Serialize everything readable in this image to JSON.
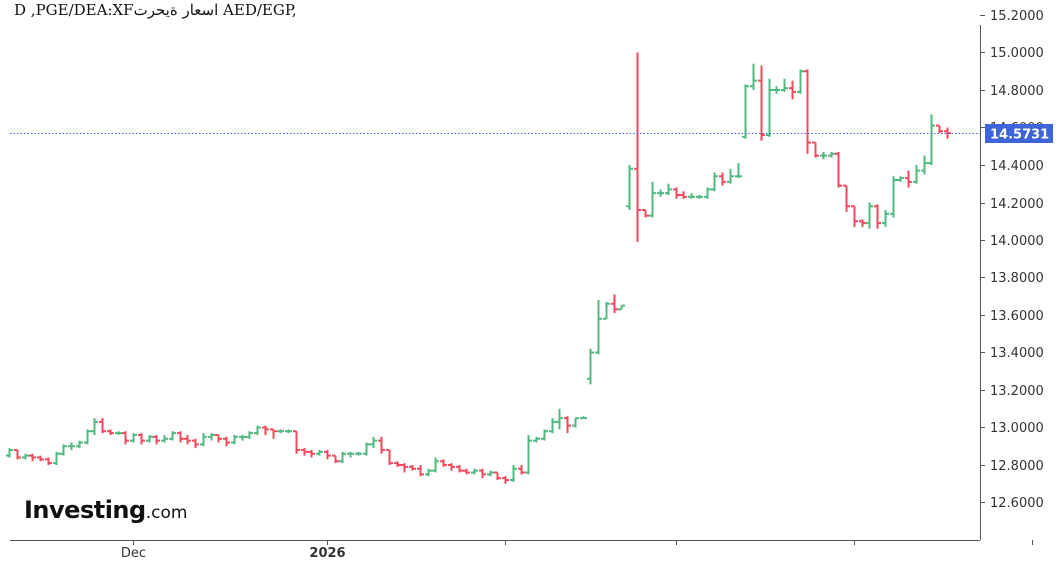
{
  "title": "D ,PGE/DEA:XFاسعار ةيحرت AED/EGP,",
  "logo": {
    "brand": "Investing",
    "suffix": ".com"
  },
  "colors": {
    "up": "#4fb97f",
    "down": "#f2495c",
    "last_price_line": "#3d64d8",
    "last_price_bg": "#3d64d8",
    "axis": "#555555",
    "tick_text": "#333333"
  },
  "chart_data": {
    "type": "ohlc_bar",
    "title": "D ,PGE/DEA:XFاسعار ةيحرت AED/EGP,",
    "xlabel": "",
    "ylabel": "",
    "ylim": [
      12.57,
      15.27
    ],
    "y_ticks": [
      "15.2000",
      "15.0000",
      "14.8000",
      "14.6000",
      "14.4000",
      "14.2000",
      "14.0000",
      "13.8000",
      "13.6000",
      "13.4000",
      "13.2000",
      "13.0000",
      "12.8000",
      "12.6000"
    ],
    "x_tick_labels": [
      {
        "index": 16,
        "label": "Dec",
        "bold": false
      },
      {
        "index": 41,
        "label": "2026",
        "bold": true
      },
      {
        "index": 64,
        "label": "",
        "bold": false
      },
      {
        "index": 86,
        "label": "",
        "bold": false
      },
      {
        "index": 109,
        "label": "",
        "bold": false
      },
      {
        "index": 132,
        "label": "",
        "bold": false
      }
    ],
    "last_price": "14.5731",
    "grid": false,
    "bars": [
      [
        12.85,
        12.89,
        12.84,
        12.88
      ],
      [
        12.88,
        12.88,
        12.83,
        12.84
      ],
      [
        12.84,
        12.86,
        12.83,
        12.85
      ],
      [
        12.85,
        12.86,
        12.82,
        12.84
      ],
      [
        12.84,
        12.85,
        12.82,
        12.83
      ],
      [
        12.83,
        12.84,
        12.8,
        12.81
      ],
      [
        12.81,
        12.87,
        12.8,
        12.86
      ],
      [
        12.86,
        12.91,
        12.85,
        12.9
      ],
      [
        12.9,
        12.92,
        12.88,
        12.9
      ],
      [
        12.9,
        12.93,
        12.89,
        12.92
      ],
      [
        12.92,
        12.99,
        12.91,
        12.98
      ],
      [
        12.98,
        13.05,
        12.96,
        13.03
      ],
      [
        13.03,
        13.05,
        12.97,
        12.98
      ],
      [
        12.98,
        12.99,
        12.96,
        12.97
      ],
      [
        12.97,
        12.98,
        12.96,
        12.97
      ],
      [
        12.97,
        12.98,
        12.91,
        12.93
      ],
      [
        12.93,
        12.97,
        12.92,
        12.96
      ],
      [
        12.96,
        12.97,
        12.91,
        12.93
      ],
      [
        12.93,
        12.96,
        12.92,
        12.95
      ],
      [
        12.95,
        12.96,
        12.91,
        12.93
      ],
      [
        12.93,
        12.96,
        12.92,
        12.94
      ],
      [
        12.94,
        12.98,
        12.93,
        12.97
      ],
      [
        12.97,
        12.98,
        12.92,
        12.94
      ],
      [
        12.94,
        12.96,
        12.91,
        12.93
      ],
      [
        12.93,
        12.94,
        12.89,
        12.91
      ],
      [
        12.91,
        12.97,
        12.9,
        12.95
      ],
      [
        12.95,
        12.97,
        12.93,
        12.96
      ],
      [
        12.96,
        12.96,
        12.92,
        12.94
      ],
      [
        12.94,
        12.95,
        12.9,
        12.92
      ],
      [
        12.92,
        12.96,
        12.91,
        12.95
      ],
      [
        12.95,
        12.96,
        12.93,
        12.95
      ],
      [
        12.95,
        12.98,
        12.94,
        12.97
      ],
      [
        12.97,
        13.01,
        12.96,
        13.0
      ],
      [
        13.0,
        13.01,
        12.96,
        12.99
      ],
      [
        12.99,
        12.99,
        12.94,
        12.98
      ],
      [
        12.98,
        12.99,
        12.97,
        12.98
      ],
      [
        12.98,
        12.99,
        12.97,
        12.98
      ],
      [
        12.98,
        12.98,
        12.86,
        12.88
      ],
      [
        12.88,
        12.89,
        12.85,
        12.87
      ],
      [
        12.87,
        12.88,
        12.84,
        12.86
      ],
      [
        12.86,
        12.88,
        12.85,
        12.87
      ],
      [
        12.87,
        12.88,
        12.83,
        12.85
      ],
      [
        12.85,
        12.85,
        12.81,
        12.82
      ],
      [
        12.82,
        12.87,
        12.81,
        12.86
      ],
      [
        12.86,
        12.87,
        12.84,
        12.86
      ],
      [
        12.86,
        12.87,
        12.85,
        12.86
      ],
      [
        12.86,
        12.92,
        12.85,
        12.91
      ],
      [
        12.91,
        12.95,
        12.89,
        12.93
      ],
      [
        12.93,
        12.95,
        12.86,
        12.88
      ],
      [
        12.88,
        12.88,
        12.8,
        12.81
      ],
      [
        12.81,
        12.82,
        12.79,
        12.8
      ],
      [
        12.8,
        12.81,
        12.76,
        12.79
      ],
      [
        12.79,
        12.8,
        12.77,
        12.78
      ],
      [
        12.78,
        12.8,
        12.74,
        12.75
      ],
      [
        12.75,
        12.78,
        12.74,
        12.77
      ],
      [
        12.77,
        12.84,
        12.76,
        12.82
      ],
      [
        12.82,
        12.83,
        12.79,
        12.8
      ],
      [
        12.8,
        12.81,
        12.77,
        12.79
      ],
      [
        12.79,
        12.8,
        12.76,
        12.77
      ],
      [
        12.77,
        12.78,
        12.75,
        12.76
      ],
      [
        12.76,
        12.78,
        12.75,
        12.77
      ],
      [
        12.77,
        12.78,
        12.73,
        12.75
      ],
      [
        12.75,
        12.77,
        12.74,
        12.76
      ],
      [
        12.76,
        12.76,
        12.72,
        12.73
      ],
      [
        12.73,
        12.74,
        12.7,
        12.72
      ],
      [
        12.72,
        12.8,
        12.71,
        12.78
      ],
      [
        12.78,
        12.8,
        12.75,
        12.76
      ],
      [
        12.76,
        12.96,
        12.75,
        12.93
      ],
      [
        12.93,
        12.95,
        12.92,
        12.94
      ],
      [
        12.94,
        12.99,
        12.93,
        12.98
      ],
      [
        12.98,
        13.05,
        12.97,
        13.03
      ],
      [
        13.03,
        13.1,
        12.99,
        13.05
      ],
      [
        13.05,
        13.06,
        12.97,
        13.01
      ],
      [
        13.01,
        13.05,
        13.0,
        13.05
      ],
      [
        13.05,
        13.06,
        13.05,
        13.05
      ],
      [
        13.26,
        13.42,
        13.23,
        13.4
      ],
      [
        13.4,
        13.68,
        13.39,
        13.58
      ],
      [
        13.58,
        13.67,
        13.58,
        13.66
      ],
      [
        13.66,
        13.71,
        13.61,
        13.63
      ],
      [
        13.63,
        13.65,
        13.63,
        13.65
      ],
      [
        14.18,
        14.4,
        14.16,
        14.38
      ],
      [
        14.38,
        15.0,
        13.99,
        14.16
      ],
      [
        14.16,
        14.16,
        14.12,
        14.13
      ],
      [
        14.13,
        14.31,
        14.12,
        14.25
      ],
      [
        14.25,
        14.27,
        14.23,
        14.25
      ],
      [
        14.25,
        14.3,
        14.24,
        14.27
      ],
      [
        14.27,
        14.28,
        14.22,
        14.24
      ],
      [
        14.24,
        14.26,
        14.22,
        14.23
      ],
      [
        14.23,
        14.25,
        14.22,
        14.23
      ],
      [
        14.23,
        14.24,
        14.22,
        14.23
      ],
      [
        14.23,
        14.28,
        14.22,
        14.27
      ],
      [
        14.27,
        14.36,
        14.26,
        14.34
      ],
      [
        14.34,
        14.36,
        14.29,
        14.31
      ],
      [
        14.31,
        14.38,
        14.3,
        14.34
      ],
      [
        14.34,
        14.41,
        14.33,
        14.34
      ],
      [
        14.55,
        14.83,
        14.54,
        14.82
      ],
      [
        14.82,
        14.94,
        14.8,
        14.85
      ],
      [
        14.85,
        14.93,
        14.53,
        14.56
      ],
      [
        14.56,
        14.86,
        14.55,
        14.8
      ],
      [
        14.8,
        14.82,
        14.78,
        14.8
      ],
      [
        14.8,
        14.86,
        14.79,
        14.81
      ],
      [
        14.81,
        14.85,
        14.75,
        14.79
      ],
      [
        14.79,
        14.91,
        14.78,
        14.9
      ],
      [
        14.9,
        14.91,
        14.46,
        14.52
      ],
      [
        14.52,
        14.52,
        14.44,
        14.45
      ],
      [
        14.45,
        14.47,
        14.43,
        14.45
      ],
      [
        14.45,
        14.47,
        14.44,
        14.46
      ],
      [
        14.46,
        14.47,
        14.28,
        14.29
      ],
      [
        14.29,
        14.29,
        14.15,
        14.18
      ],
      [
        14.18,
        14.18,
        14.07,
        14.1
      ],
      [
        14.1,
        14.11,
        14.07,
        14.09
      ],
      [
        14.09,
        14.2,
        14.06,
        14.18
      ],
      [
        14.18,
        14.19,
        14.06,
        14.09
      ],
      [
        14.09,
        14.16,
        14.07,
        14.14
      ],
      [
        14.14,
        14.34,
        14.12,
        14.32
      ],
      [
        14.32,
        14.34,
        14.31,
        14.33
      ],
      [
        14.33,
        14.37,
        14.28,
        14.31
      ],
      [
        14.31,
        14.4,
        14.3,
        14.37
      ],
      [
        14.37,
        14.45,
        14.35,
        14.41
      ],
      [
        14.41,
        14.67,
        14.4,
        14.61
      ],
      [
        14.61,
        14.61,
        14.57,
        14.58
      ],
      [
        14.58,
        14.6,
        14.54,
        14.57
      ]
    ]
  }
}
